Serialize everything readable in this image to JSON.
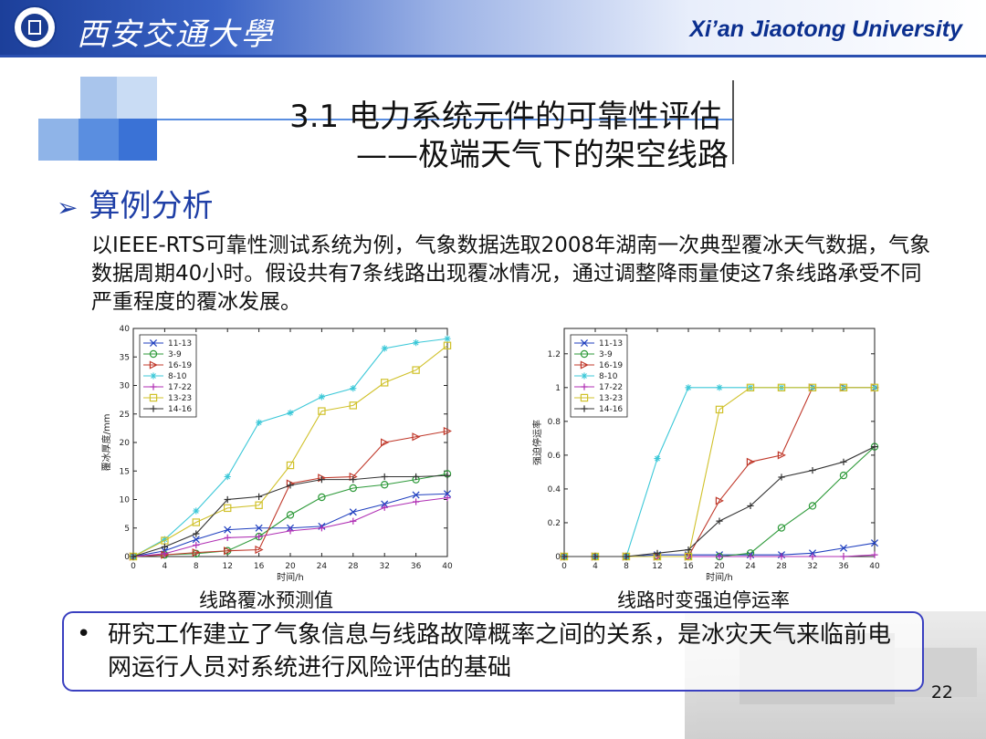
{
  "header": {
    "school_name_cn": "西安交通大學",
    "school_name_en": "Xi’an Jiaotong University",
    "logo_icon": "university-seal-icon",
    "colors": {
      "brand": "#1c3f9a",
      "english_name": "#0b2f8f"
    }
  },
  "title": {
    "line1": "3.1 电力系统元件的可靠性评估",
    "line2": "——极端天气下的架空线路"
  },
  "section": {
    "arrow_icon": "arrow-right-icon",
    "arrow": "➢",
    "heading": "算例分析",
    "color": "#1f3fa6"
  },
  "paragraph": "以IEEE-RTS可靠性测试系统为例，气象数据选取2008年湖南一次典型覆冰天气数据，气象数据周期40小时。假设共有7条线路出现覆冰情况，通过调整降雨量使这7条线路承受不同严重程度的覆冰发展。",
  "chart_data": [
    {
      "type": "line",
      "title": "",
      "caption": "线路覆冰预测值",
      "xlabel": "时间/h",
      "ylabel": "覆冰厚度/mm",
      "xlim": [
        0,
        40
      ],
      "ylim": [
        0,
        40
      ],
      "xticks": [
        0,
        4,
        8,
        12,
        16,
        20,
        24,
        28,
        32,
        36,
        40
      ],
      "yticks": [
        0,
        5,
        10,
        15,
        20,
        25,
        30,
        35,
        40
      ],
      "legend_position": "top-left",
      "x": [
        0,
        4,
        8,
        12,
        16,
        20,
        24,
        28,
        32,
        36,
        40
      ],
      "series": [
        {
          "name": "11-13",
          "color": "#1f3fbf",
          "marker": "x",
          "values": [
            0,
            1,
            3,
            4.7,
            5,
            5,
            5.3,
            7.8,
            9.2,
            10.8,
            11
          ]
        },
        {
          "name": "3-9",
          "color": "#2e9a3a",
          "marker": "o",
          "values": [
            0,
            0.3,
            0.5,
            1,
            3.5,
            7.3,
            10.4,
            12,
            12.6,
            13.5,
            14.5
          ]
        },
        {
          "name": "16-19",
          "color": "#c0392b",
          "marker": ">",
          "values": [
            0,
            0.3,
            0.7,
            1,
            1.2,
            12.8,
            13.8,
            14,
            20,
            21,
            22
          ]
        },
        {
          "name": "8-10",
          "color": "#3cc8d8",
          "marker": "*",
          "values": [
            0,
            3,
            8,
            14,
            23.5,
            25.2,
            28,
            29.5,
            36.5,
            37.5,
            38.2
          ]
        },
        {
          "name": "17-22",
          "color": "#b02fb4",
          "marker": "+",
          "values": [
            0,
            0.5,
            2,
            3.3,
            3.5,
            4.5,
            5,
            6.2,
            8.6,
            9.6,
            10.3
          ]
        },
        {
          "name": "13-23",
          "color": "#d0c12a",
          "marker": "s",
          "values": [
            0,
            2.8,
            6,
            8.5,
            9,
            16,
            25.5,
            26.5,
            30.5,
            32.7,
            37
          ]
        },
        {
          "name": "14-16",
          "color": "#333333",
          "marker": "+",
          "values": [
            0,
            1.7,
            4,
            10,
            10.5,
            12.5,
            13.5,
            13.5,
            14,
            14,
            14.2
          ]
        }
      ]
    },
    {
      "type": "line",
      "title": "",
      "caption": "线路时变强迫停运率",
      "xlabel": "时间/h",
      "ylabel": "强迫停运率",
      "xlim": [
        0,
        40
      ],
      "ylim": [
        0,
        1.35
      ],
      "xticks": [
        0,
        4,
        8,
        12,
        16,
        20,
        24,
        28,
        32,
        36,
        40
      ],
      "yticks": [
        0,
        0.2,
        0.4,
        0.6,
        0.8,
        1,
        1.2
      ],
      "legend_position": "top-left",
      "x": [
        0,
        4,
        8,
        12,
        16,
        20,
        24,
        28,
        32,
        36,
        40
      ],
      "series": [
        {
          "name": "11-13",
          "color": "#1f3fbf",
          "marker": "x",
          "values": [
            0,
            0,
            0,
            0.01,
            0.01,
            0.01,
            0.01,
            0.01,
            0.02,
            0.05,
            0.08
          ]
        },
        {
          "name": "3-9",
          "color": "#2e9a3a",
          "marker": "o",
          "values": [
            0,
            0,
            0,
            0,
            0,
            0,
            0.02,
            0.17,
            0.3,
            0.48,
            0.65
          ]
        },
        {
          "name": "16-19",
          "color": "#c0392b",
          "marker": ">",
          "values": [
            0,
            0,
            0,
            0,
            0,
            0.33,
            0.56,
            0.6,
            1,
            1,
            1
          ]
        },
        {
          "name": "8-10",
          "color": "#3cc8d8",
          "marker": "*",
          "values": [
            0,
            0,
            0,
            0.58,
            1,
            1,
            1,
            1,
            1,
            1,
            1
          ]
        },
        {
          "name": "17-22",
          "color": "#b02fb4",
          "marker": "+",
          "values": [
            0,
            0,
            0,
            0,
            0,
            0,
            0,
            0,
            0,
            0,
            0.01
          ]
        },
        {
          "name": "13-23",
          "color": "#d0c12a",
          "marker": "s",
          "values": [
            0,
            0,
            0,
            0,
            0,
            0.87,
            1,
            1,
            1,
            1,
            1
          ]
        },
        {
          "name": "14-16",
          "color": "#333333",
          "marker": "+",
          "values": [
            0,
            0,
            0,
            0.02,
            0.04,
            0.21,
            0.3,
            0.47,
            0.51,
            0.56,
            0.65
          ]
        }
      ]
    }
  ],
  "note": {
    "bullet": "•",
    "text": "研究工作建立了气象信息与线路故障概率之间的关系，是冰灾天气来临前电网运行人员对系统进行风险评估的基础",
    "border_color": "#3a40c0"
  },
  "page_number": "22"
}
